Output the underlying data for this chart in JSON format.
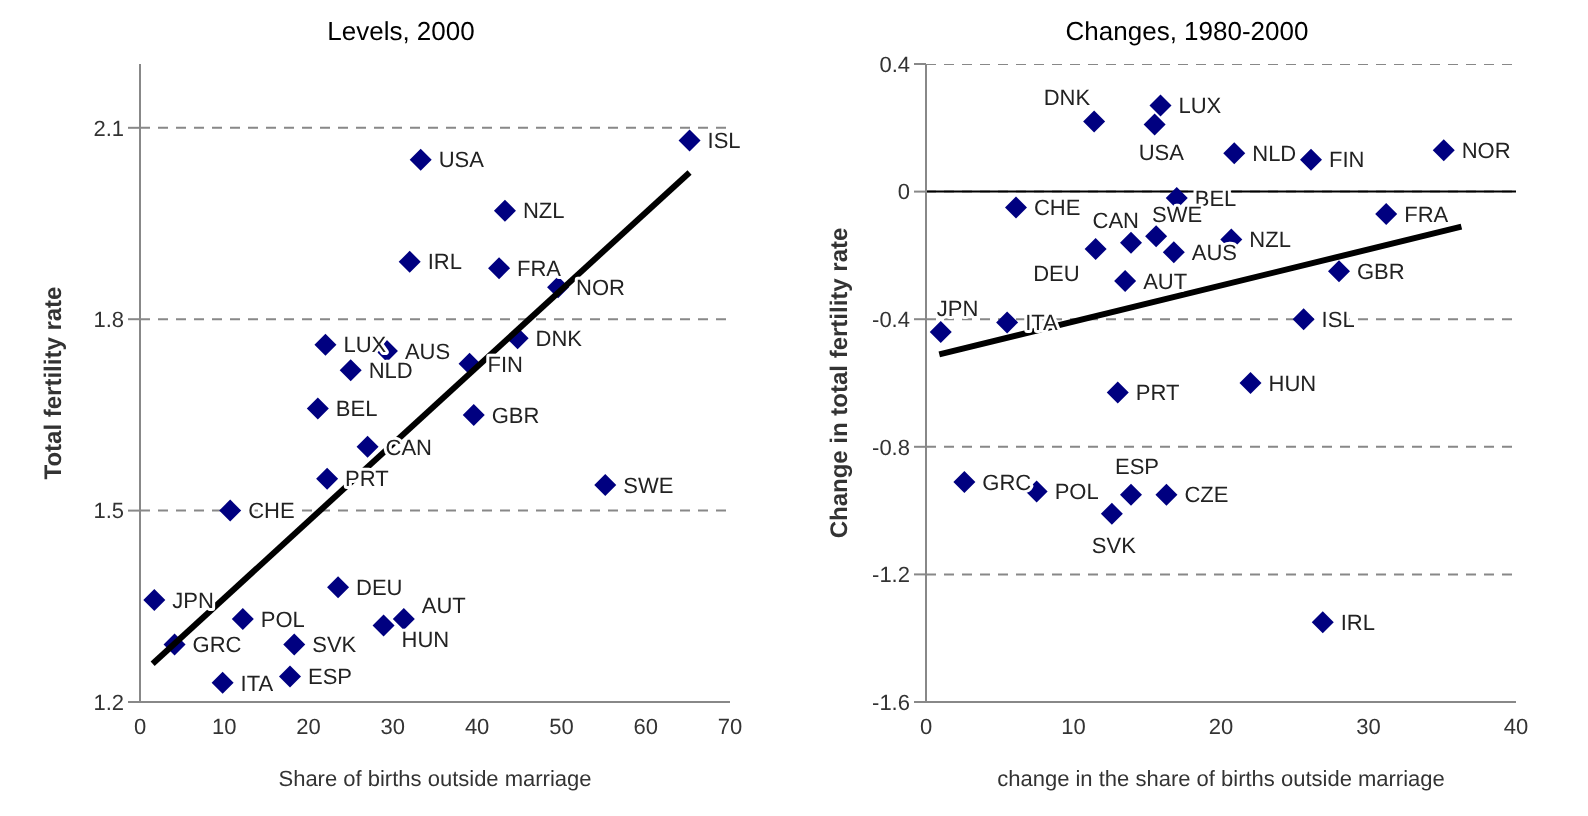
{
  "chart_data": [
    {
      "type": "scatter",
      "title": "Levels, 2000",
      "xlabel": "Share of births outside marriage",
      "ylabel": "Total fertility rate",
      "xlim": [
        0,
        70
      ],
      "xticks": [
        0,
        10,
        20,
        30,
        40,
        50,
        60,
        70
      ],
      "ylim": [
        1.2,
        2.2
      ],
      "yticks": [
        1.2,
        1.5,
        1.8,
        2.1
      ],
      "grid": "y",
      "series": [
        {
          "type": "scatter",
          "marker": "diamond",
          "color": "#000080",
          "x": [
            65.2,
            33.3,
            43.3,
            32.0,
            42.6,
            49.6,
            44.8,
            22.0,
            29.3,
            39.1,
            25.0,
            21.1,
            39.6,
            27.0,
            22.2,
            55.2,
            10.7,
            23.5,
            1.7,
            31.3,
            12.2,
            28.9,
            4.1,
            18.3,
            17.8,
            9.8
          ],
          "values": [
            2.08,
            2.05,
            1.97,
            1.89,
            1.88,
            1.85,
            1.77,
            1.76,
            1.75,
            1.73,
            1.72,
            1.66,
            1.65,
            1.6,
            1.55,
            1.54,
            1.5,
            1.38,
            1.36,
            1.33,
            1.33,
            1.32,
            1.29,
            1.29,
            1.24,
            1.23
          ]
        },
        {
          "type": "line",
          "color": "#000000",
          "x": [
            1.5,
            65.2
          ],
          "values": [
            1.26,
            2.03
          ]
        }
      ],
      "annotations": [
        {
          "text": "ISL",
          "x": 65.2,
          "y": 2.08
        },
        {
          "text": "USA",
          "x": 33.3,
          "y": 2.05
        },
        {
          "text": "NZL",
          "x": 43.3,
          "y": 1.97
        },
        {
          "text": "IRL",
          "x": 32.0,
          "y": 1.89
        },
        {
          "text": "FRA",
          "x": 42.6,
          "y": 1.88
        },
        {
          "text": "NOR",
          "x": 49.6,
          "y": 1.85
        },
        {
          "text": "DNK",
          "x": 44.8,
          "y": 1.77
        },
        {
          "text": "LUX",
          "x": 22.0,
          "y": 1.76
        },
        {
          "text": "AUS",
          "x": 29.3,
          "y": 1.75
        },
        {
          "text": "FIN",
          "x": 39.1,
          "y": 1.73
        },
        {
          "text": "NLD",
          "x": 25.0,
          "y": 1.72
        },
        {
          "text": "BEL",
          "x": 21.1,
          "y": 1.66
        },
        {
          "text": "GBR",
          "x": 39.6,
          "y": 1.65
        },
        {
          "text": "CAN",
          "x": 27.0,
          "y": 1.6
        },
        {
          "text": "PRT",
          "x": 22.2,
          "y": 1.55
        },
        {
          "text": "SWE",
          "x": 55.2,
          "y": 1.54
        },
        {
          "text": "CHE",
          "x": 10.7,
          "y": 1.5
        },
        {
          "text": "DEU",
          "x": 23.5,
          "y": 1.38
        },
        {
          "text": "JPN",
          "x": 1.7,
          "y": 1.36
        },
        {
          "text": "AUT",
          "x": 31.3,
          "y": 1.33
        },
        {
          "text": "POL",
          "x": 12.2,
          "y": 1.33
        },
        {
          "text": "HUN",
          "x": 28.9,
          "y": 1.32
        },
        {
          "text": "GRC",
          "x": 4.1,
          "y": 1.29
        },
        {
          "text": "SVK",
          "x": 18.3,
          "y": 1.29
        },
        {
          "text": "ESP",
          "x": 17.8,
          "y": 1.24
        },
        {
          "text": "ITA",
          "x": 9.8,
          "y": 1.23
        }
      ]
    },
    {
      "type": "scatter",
      "title": "Changes, 1980-2000",
      "xlabel": "change in the share of births outside marriage",
      "ylabel": "Change in total fertility rate",
      "xlim": [
        0,
        40
      ],
      "xticks": [
        0,
        10,
        20,
        30,
        40
      ],
      "ylim": [
        -1.6,
        0.4
      ],
      "yticks": [
        -1.6,
        -1.2,
        -0.8,
        -0.4,
        0,
        0.4
      ],
      "grid": "y",
      "ref_lines": [
        {
          "axis": "y",
          "value": 0,
          "color": "#000000"
        }
      ],
      "series": [
        {
          "type": "scatter",
          "marker": "diamond",
          "color": "#000080",
          "x": [
            11.4,
            15.9,
            15.5,
            20.9,
            26.1,
            35.1,
            6.1,
            17.0,
            31.2,
            13.9,
            15.6,
            20.7,
            11.5,
            16.8,
            28.0,
            13.5,
            25.6,
            5.5,
            1.0,
            13.0,
            22.0,
            2.6,
            7.5,
            13.9,
            16.3,
            12.6,
            26.9
          ],
          "values": [
            0.22,
            0.27,
            0.21,
            0.12,
            0.1,
            0.13,
            -0.05,
            -0.02,
            -0.07,
            -0.16,
            -0.14,
            -0.15,
            -0.18,
            -0.19,
            -0.25,
            -0.28,
            -0.4,
            -0.41,
            -0.44,
            -0.63,
            -0.6,
            -0.91,
            -0.94,
            -0.95,
            -0.95,
            -1.01,
            -1.35
          ]
        },
        {
          "type": "line",
          "color": "#000000",
          "x": [
            0.9,
            36.3
          ],
          "values": [
            -0.51,
            -0.11
          ]
        }
      ],
      "annotations": [
        {
          "text": "DNK",
          "x": 11.4,
          "y": 0.22
        },
        {
          "text": "LUX",
          "x": 15.9,
          "y": 0.27
        },
        {
          "text": "USA",
          "x": 15.5,
          "y": 0.21
        },
        {
          "text": "NLD",
          "x": 20.9,
          "y": 0.12
        },
        {
          "text": "FIN",
          "x": 26.1,
          "y": 0.1
        },
        {
          "text": "NOR",
          "x": 35.1,
          "y": 0.13
        },
        {
          "text": "CHE",
          "x": 6.1,
          "y": -0.05
        },
        {
          "text": "BEL",
          "x": 17.0,
          "y": -0.02
        },
        {
          "text": "FRA",
          "x": 31.2,
          "y": -0.07
        },
        {
          "text": "CAN",
          "x": 13.9,
          "y": -0.16
        },
        {
          "text": "SWE",
          "x": 15.6,
          "y": -0.14
        },
        {
          "text": "NZL",
          "x": 20.7,
          "y": -0.15
        },
        {
          "text": "DEU",
          "x": 11.5,
          "y": -0.18
        },
        {
          "text": "AUS",
          "x": 16.8,
          "y": -0.19
        },
        {
          "text": "GBR",
          "x": 28.0,
          "y": -0.25
        },
        {
          "text": "AUT",
          "x": 13.5,
          "y": -0.28
        },
        {
          "text": "ISL",
          "x": 25.6,
          "y": -0.4
        },
        {
          "text": "ITA",
          "x": 5.5,
          "y": -0.41
        },
        {
          "text": "JPN",
          "x": 1.0,
          "y": -0.44
        },
        {
          "text": "PRT",
          "x": 13.0,
          "y": -0.63
        },
        {
          "text": "HUN",
          "x": 22.0,
          "y": -0.6
        },
        {
          "text": "GRC",
          "x": 2.6,
          "y": -0.91
        },
        {
          "text": "POL",
          "x": 7.5,
          "y": -0.94
        },
        {
          "text": "ESP",
          "x": 13.9,
          "y": -0.95
        },
        {
          "text": "CZE",
          "x": 16.3,
          "y": -0.95
        },
        {
          "text": "SVK",
          "x": 12.6,
          "y": -1.01
        },
        {
          "text": "IRL",
          "x": 26.9,
          "y": -1.35
        }
      ]
    }
  ]
}
